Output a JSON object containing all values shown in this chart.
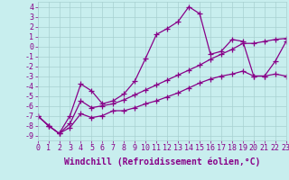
{
  "xlabel": "Windchill (Refroidissement éolien,°C)",
  "xlim": [
    0,
    23
  ],
  "ylim": [
    -9.5,
    4.5
  ],
  "xticks": [
    0,
    1,
    2,
    3,
    4,
    5,
    6,
    7,
    8,
    9,
    10,
    11,
    12,
    13,
    14,
    15,
    16,
    17,
    18,
    19,
    20,
    21,
    22,
    23
  ],
  "yticks": [
    -9,
    -8,
    -7,
    -6,
    -5,
    -4,
    -3,
    -2,
    -1,
    0,
    1,
    2,
    3,
    4
  ],
  "bg_color": "#c8eeee",
  "grid_color": "#a8d0d0",
  "line_color": "#880088",
  "line1_x": [
    0,
    1,
    2,
    3,
    4,
    5,
    6,
    7,
    8,
    9,
    10,
    11,
    12,
    13,
    14,
    15,
    16,
    17,
    18,
    19,
    20,
    21,
    22,
    23
  ],
  "line1_y": [
    -7.0,
    -8.0,
    -8.8,
    -7.0,
    -3.8,
    -4.5,
    -5.8,
    -5.5,
    -4.8,
    -3.5,
    -1.2,
    1.2,
    1.8,
    2.5,
    4.0,
    3.3,
    -0.8,
    -0.5,
    0.7,
    0.5,
    -3.0,
    -3.0,
    -1.5,
    0.5
  ],
  "line2_x": [
    0,
    1,
    2,
    3,
    4,
    5,
    6,
    7,
    8,
    9,
    10,
    11,
    12,
    13,
    14,
    15,
    16,
    17,
    18,
    19,
    20,
    21,
    22,
    23
  ],
  "line2_y": [
    -7.0,
    -8.0,
    -8.8,
    -7.8,
    -5.5,
    -6.2,
    -6.0,
    -5.8,
    -5.4,
    -4.9,
    -4.4,
    -3.9,
    -3.4,
    -2.9,
    -2.4,
    -1.9,
    -1.3,
    -0.8,
    -0.3,
    0.3,
    0.3,
    0.5,
    0.7,
    0.8
  ],
  "line3_x": [
    0,
    1,
    2,
    3,
    4,
    5,
    6,
    7,
    8,
    9,
    10,
    11,
    12,
    13,
    14,
    15,
    16,
    17,
    18,
    19,
    20,
    21,
    22,
    23
  ],
  "line3_y": [
    -7.0,
    -8.0,
    -8.8,
    -8.2,
    -6.8,
    -7.2,
    -7.0,
    -6.5,
    -6.5,
    -6.2,
    -5.8,
    -5.5,
    -5.1,
    -4.7,
    -4.2,
    -3.7,
    -3.3,
    -3.0,
    -2.8,
    -2.5,
    -3.0,
    -3.0,
    -2.8,
    -3.0
  ],
  "marker": "+",
  "markersize": 4,
  "linewidth": 0.9,
  "font_size": 6,
  "xlabel_fontsize": 7
}
